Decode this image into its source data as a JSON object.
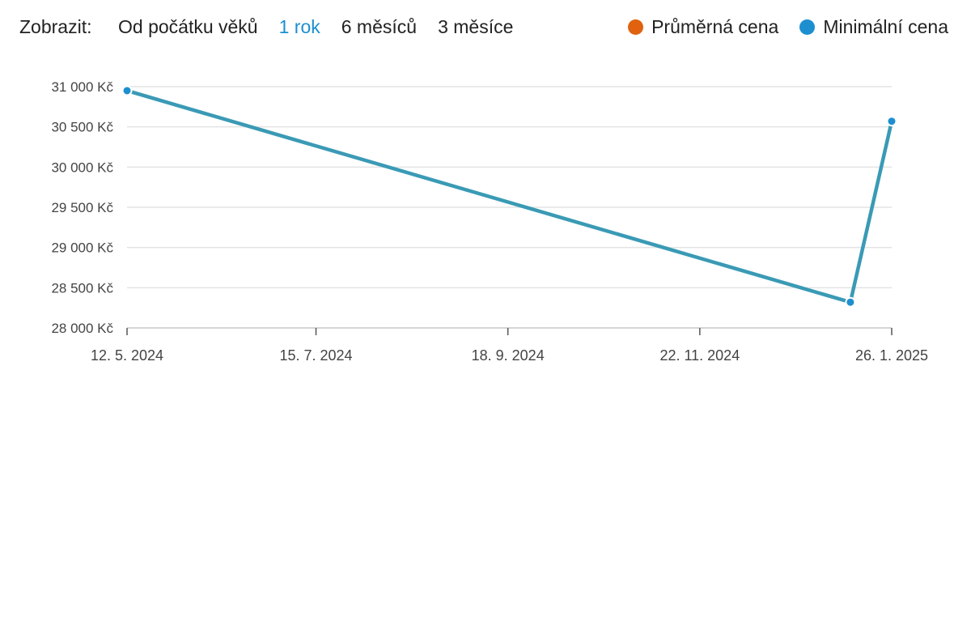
{
  "toolbar": {
    "label": "Zobrazit:",
    "ranges": [
      "Od počátku věků",
      "1 rok",
      "6 měsíců",
      "3 měsíce"
    ],
    "active_index": 1
  },
  "legend": [
    {
      "label": "Průměrná cena",
      "color": "#e0620e"
    },
    {
      "label": "Minimální cena",
      "color": "#1d8fd0"
    }
  ],
  "chart_data": {
    "type": "line",
    "x_axis_type": "date",
    "x_ticks": [
      "2024-05-12",
      "2024-07-15",
      "2024-09-18",
      "2024-11-22",
      "2025-01-26"
    ],
    "x_tick_labels": [
      "12. 5. 2024",
      "15. 7. 2024",
      "18. 9. 2024",
      "22. 11. 2024",
      "26. 1. 2025"
    ],
    "y_ticks": [
      28000,
      28500,
      29000,
      29500,
      30000,
      30500,
      31000
    ],
    "y_tick_labels": [
      "28 000 Kč",
      "28 500 Kč",
      "29 000 Kč",
      "29 500 Kč",
      "30 000 Kč",
      "30 500 Kč",
      "31 000 Kč"
    ],
    "ylim": [
      28000,
      31000
    ],
    "series": [
      {
        "name": "Minimální cena",
        "color": "#3a9ab5",
        "points": [
          {
            "x": "2024-05-12",
            "y": 30950
          },
          {
            "x": "2025-01-12",
            "y": 28320
          },
          {
            "x": "2025-01-26",
            "y": 30570
          }
        ]
      }
    ],
    "grid": true
  }
}
